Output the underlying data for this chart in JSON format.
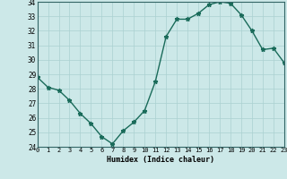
{
  "x": [
    0,
    1,
    2,
    3,
    4,
    5,
    6,
    7,
    8,
    9,
    10,
    11,
    12,
    13,
    14,
    15,
    16,
    17,
    18,
    19,
    20,
    21,
    22,
    23
  ],
  "y": [
    28.8,
    28.1,
    27.9,
    27.2,
    26.3,
    25.6,
    24.7,
    24.2,
    25.1,
    25.7,
    26.5,
    28.5,
    31.6,
    32.8,
    32.8,
    33.2,
    33.8,
    34.0,
    33.9,
    33.1,
    32.0,
    30.7,
    30.8,
    29.8
  ],
  "xlabel": "Humidex (Indice chaleur)",
  "ylim": [
    24,
    34
  ],
  "xlim": [
    0,
    23
  ],
  "yticks": [
    24,
    25,
    26,
    27,
    28,
    29,
    30,
    31,
    32,
    33,
    34
  ],
  "xticks": [
    0,
    1,
    2,
    3,
    4,
    5,
    6,
    7,
    8,
    9,
    10,
    11,
    12,
    13,
    14,
    15,
    16,
    17,
    18,
    19,
    20,
    21,
    22,
    23
  ],
  "line_color": "#1a6b5a",
  "bg_color": "#cce8e8",
  "grid_color": "#aad0d0",
  "marker": "*",
  "marker_size": 3.5,
  "line_width": 1.0
}
